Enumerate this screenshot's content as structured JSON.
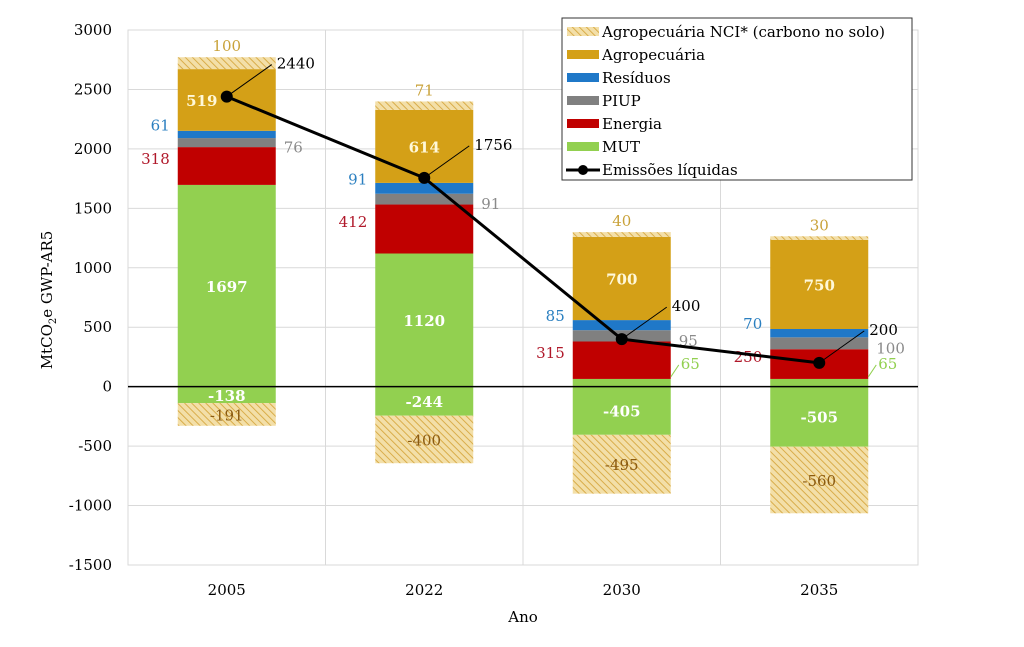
{
  "chart_data": {
    "type": "bar",
    "stacked": true,
    "title": "",
    "xlabel": "Ano",
    "ylabel_main": "MtCO",
    "ylabel_sub": "2",
    "ylabel_rest": "e GWP-AR5",
    "ylim": [
      -1500,
      3000
    ],
    "yticks": [
      -1500,
      -1000,
      -500,
      0,
      500,
      1000,
      1500,
      2000,
      2500,
      3000
    ],
    "grid": true,
    "legend_placement": "top-right",
    "categories": [
      "2005",
      "2022",
      "2030",
      "2035"
    ],
    "series": [
      {
        "name": "MUT",
        "color": "#92d050",
        "values": [
          1697,
          1120,
          65,
          65
        ],
        "negative_values": [
          -138,
          -244,
          -405,
          -505
        ]
      },
      {
        "name": "Energia",
        "color": "#c00000",
        "values": [
          318,
          412,
          315,
          250
        ]
      },
      {
        "name": "PIUP",
        "color": "#808080",
        "values": [
          76,
          91,
          95,
          100
        ]
      },
      {
        "name": "Resíduos",
        "color": "#1f78c8",
        "values": [
          61,
          91,
          85,
          70
        ]
      },
      {
        "name": "Agropecuária",
        "color": "#d4a017",
        "values": [
          519,
          614,
          700,
          750
        ]
      },
      {
        "name": "Agropecuária NCI* (carbono no solo)",
        "color": "#e6c26a",
        "hatched": true,
        "values": [
          100,
          71,
          40,
          30
        ],
        "negative_values": [
          -191,
          -400,
          -495,
          -560
        ]
      }
    ],
    "line": {
      "name": "Emissões líquidas",
      "color": "#000000",
      "values": [
        2440,
        1756,
        400,
        200
      ]
    },
    "legend_order": [
      "Agropecuária NCI* (carbono no solo)",
      "Agropecuária",
      "Resíduos",
      "PIUP",
      "Energia",
      "MUT",
      "Emissões líquidas"
    ]
  }
}
